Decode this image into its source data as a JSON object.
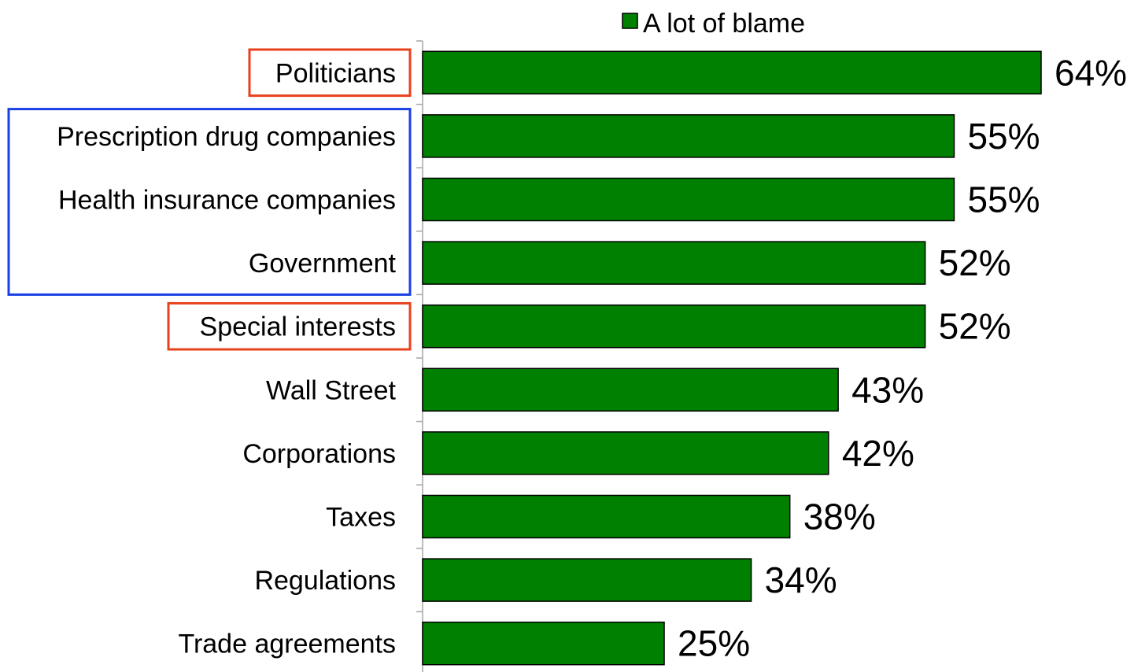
{
  "chart_data": {
    "type": "bar",
    "orientation": "horizontal",
    "categories": [
      "Politicians",
      "Prescription drug companies",
      "Health insurance companies",
      "Government",
      "Special interests",
      "Wall Street",
      "Corporations",
      "Taxes",
      "Regulations",
      "Trade agreements"
    ],
    "series": [
      {
        "name": "A lot of blame",
        "values": [
          64,
          55,
          55,
          52,
          52,
          43,
          42,
          38,
          34,
          25
        ],
        "labels": [
          "64%",
          "55%",
          "55%",
          "52%",
          "52%",
          "43%",
          "42%",
          "38%",
          "34%",
          "25%"
        ]
      }
    ],
    "value_unit": "%",
    "xlim": [
      0,
      64
    ],
    "grid": false,
    "legend_position": "top",
    "colors": {
      "bar_fill": "#008000",
      "bar_stroke": "#000000",
      "highlight_red": "#e8401c",
      "highlight_blue": "#1a3fe6",
      "axis": "#a6a6a6"
    },
    "highlights": [
      {
        "color": "red",
        "categories": [
          "Politicians"
        ]
      },
      {
        "color": "blue",
        "categories": [
          "Prescription drug companies",
          "Health insurance companies",
          "Government"
        ]
      },
      {
        "color": "red",
        "categories": [
          "Special interests"
        ]
      }
    ]
  }
}
